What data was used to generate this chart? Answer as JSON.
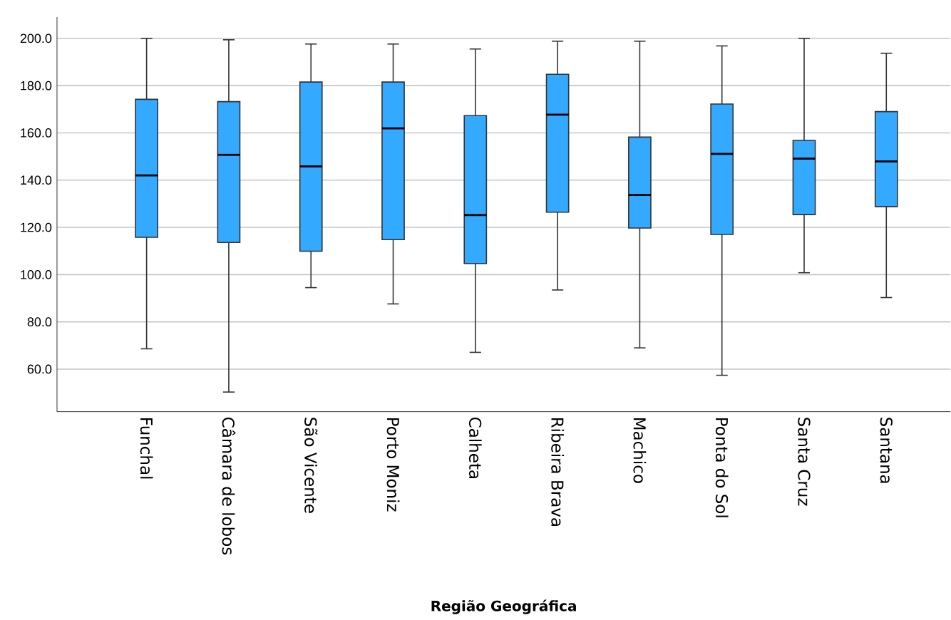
{
  "chart_data": {
    "type": "box",
    "xlabel": "**Região Geográfica**",
    "color": "#33aaff",
    "grid": "y",
    "categories": [
      "Funchal",
      "Câmara de lobos",
      "São Vicente",
      "Porto Moniz",
      "Calheta",
      "Ribeira Brava",
      "Machico",
      "Ponta do Sol",
      "Santa Cruz",
      "Santana"
    ],
    "boxes": [
      {
        "low": 68.6,
        "q1": 115.8,
        "median": 142.0,
        "q3": 174.2,
        "high": 200.0
      },
      {
        "low": 50.3,
        "q1": 113.6,
        "median": 150.7,
        "q3": 173.2,
        "high": 199.4
      },
      {
        "low": 94.5,
        "q1": 109.9,
        "median": 145.8,
        "q3": 181.5,
        "high": 197.6
      },
      {
        "low": 87.6,
        "q1": 114.8,
        "median": 161.9,
        "q3": 181.5,
        "high": 197.6
      },
      {
        "low": 67.1,
        "q1": 104.7,
        "median": 125.2,
        "q3": 167.3,
        "high": 195.5
      },
      {
        "low": 93.5,
        "q1": 126.4,
        "median": 167.7,
        "q3": 184.8,
        "high": 198.8
      },
      {
        "low": 69.0,
        "q1": 119.7,
        "median": 133.7,
        "q3": 158.2,
        "high": 198.8
      },
      {
        "low": 57.4,
        "q1": 117.0,
        "median": 151.1,
        "q3": 172.2,
        "high": 196.8
      },
      {
        "low": 100.8,
        "q1": 125.4,
        "median": 149.1,
        "q3": 156.8,
        "high": 200.0
      },
      {
        "low": 90.3,
        "q1": 128.8,
        "median": 147.9,
        "q3": 169.0,
        "high": 193.7
      }
    ],
    "ylim": [
      42,
      209
    ],
    "yticks": [
      {
        "value": 60,
        "label": "60.0"
      },
      {
        "value": 80,
        "label": "80.0"
      },
      {
        "value": 100,
        "label": "100.0"
      },
      {
        "value": 120,
        "label": "120.0"
      },
      {
        "value": 140,
        "label": "140.0"
      },
      {
        "value": 160,
        "label": "160.0"
      },
      {
        "value": 180,
        "label": "180.0"
      },
      {
        "value": 200,
        "label": "200.0"
      }
    ]
  }
}
